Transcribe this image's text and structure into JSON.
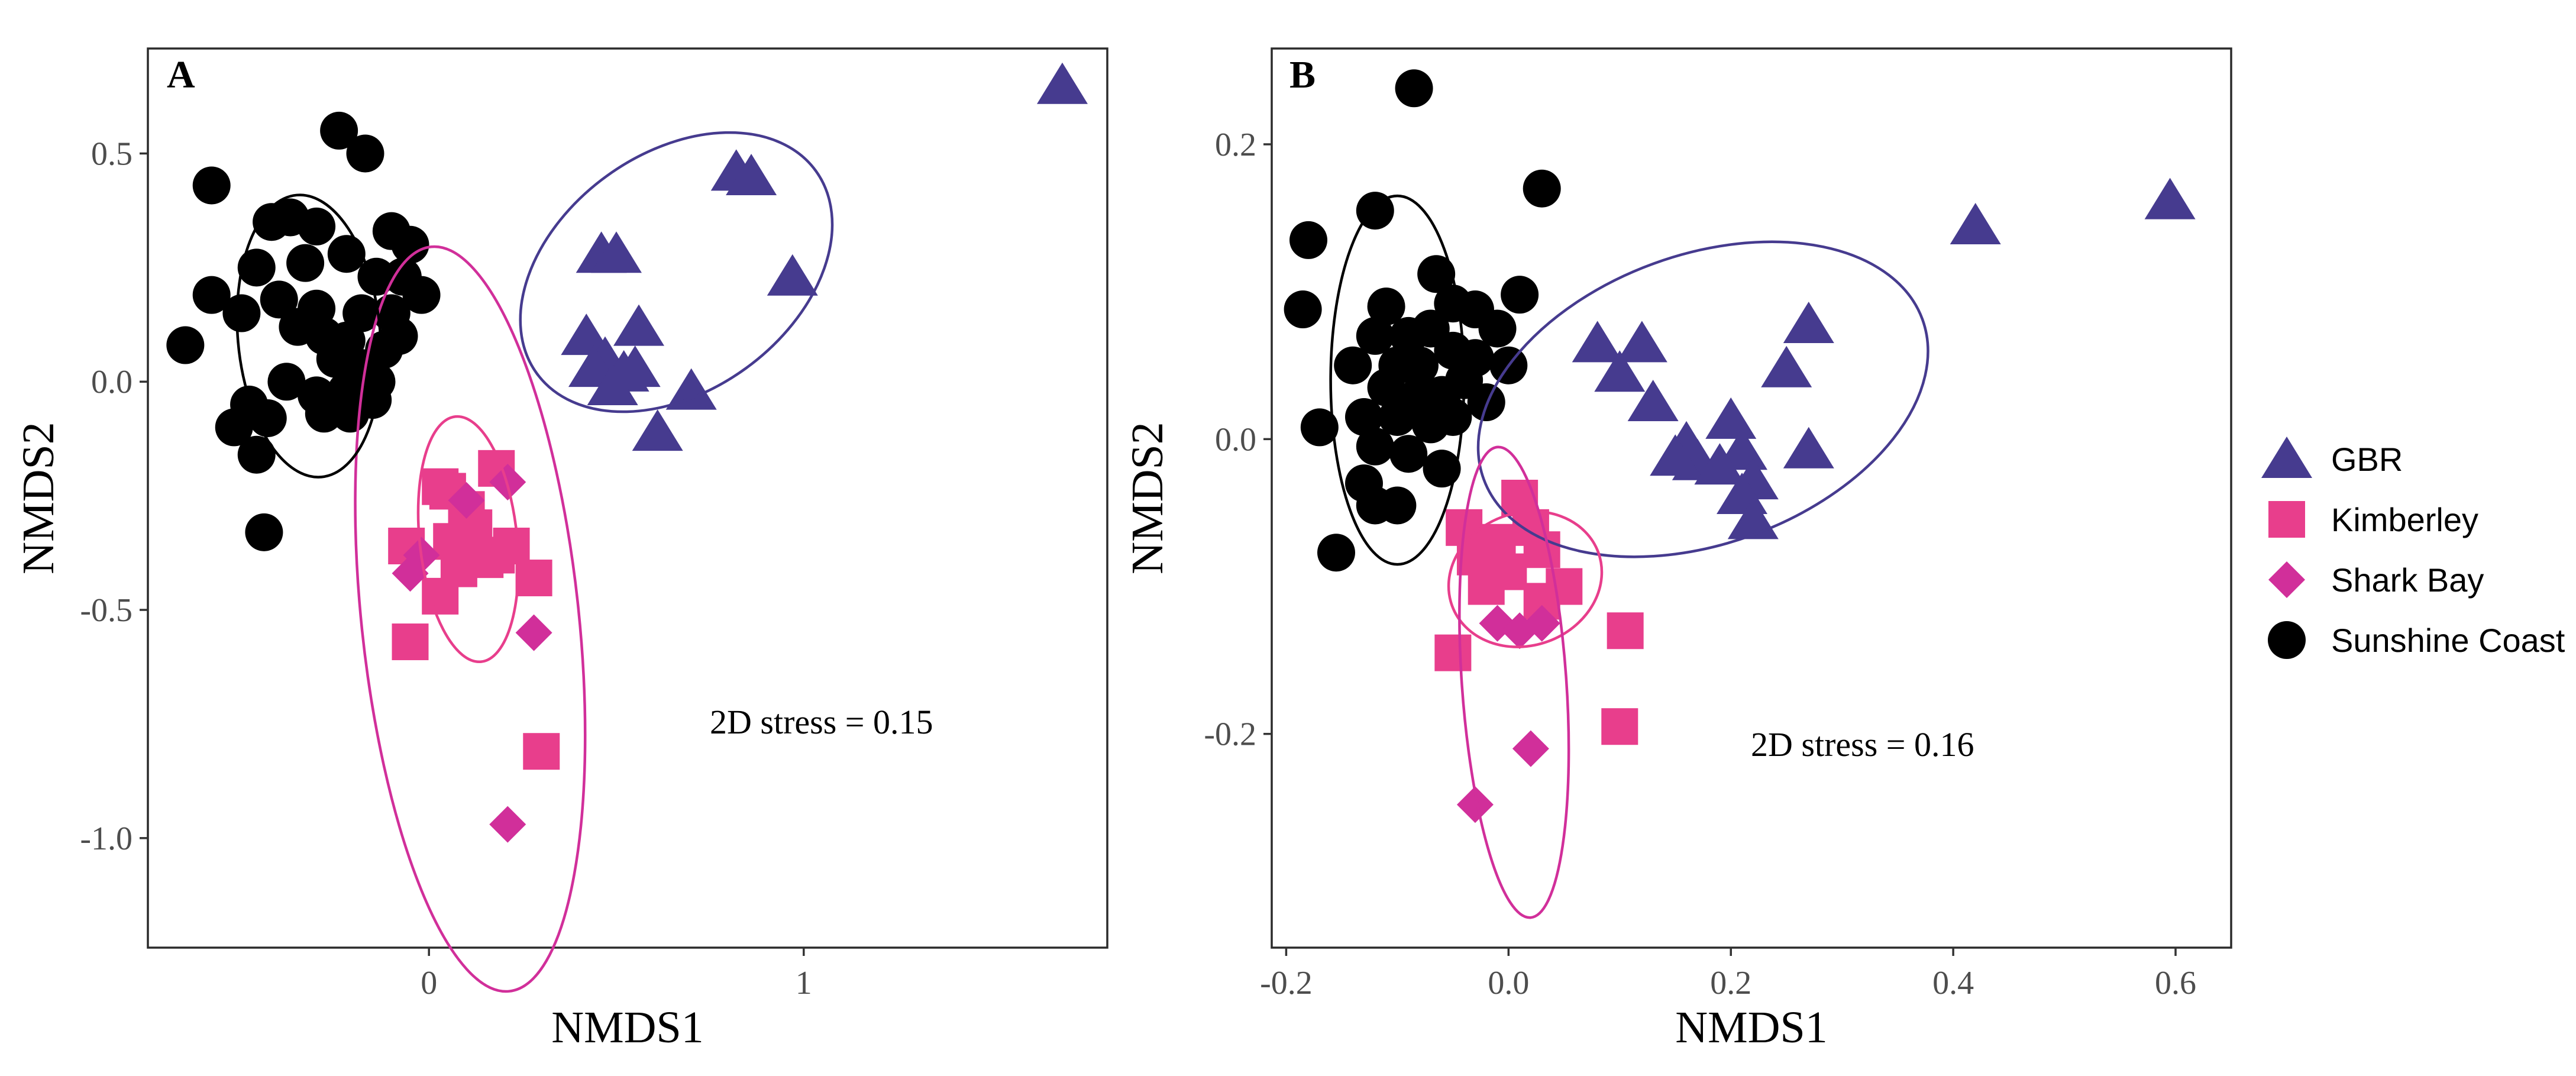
{
  "legend": {
    "items": [
      {
        "key": "gbr",
        "label": "GBR",
        "shape": "triangle",
        "color": "#463b8f"
      },
      {
        "key": "kim",
        "label": "Kimberley",
        "shape": "square",
        "color": "#e83e8c"
      },
      {
        "key": "shark",
        "label": "Shark Bay",
        "shape": "diamond",
        "color": "#d12f9a"
      },
      {
        "key": "sun",
        "label": "Sunshine Coast",
        "shape": "circle",
        "color": "#000000"
      }
    ]
  },
  "chart_data": [
    {
      "type": "scatter",
      "panel": "A",
      "xlabel": "NMDS1",
      "ylabel": "NMDS2",
      "xlim": [
        -0.75,
        1.81
      ],
      "ylim": [
        -1.24,
        0.73
      ],
      "xticks": [
        0,
        1
      ],
      "xtick_labels": [
        "0",
        "1"
      ],
      "yticks": [
        0.5,
        0.0,
        -0.5,
        -1.0
      ],
      "ytick_labels": [
        "0.5",
        "0.0",
        "-0.5",
        "-1.0"
      ],
      "annotation": "2D stress = 0.15",
      "series": [
        {
          "name": "GBR",
          "key": "gbr",
          "points": [
            [
              1.69,
              0.65
            ],
            [
              0.82,
              0.46
            ],
            [
              0.86,
              0.45
            ],
            [
              0.97,
              0.23
            ],
            [
              0.46,
              0.28
            ],
            [
              0.5,
              0.28
            ],
            [
              0.56,
              0.12
            ],
            [
              0.42,
              0.1
            ],
            [
              0.47,
              0.05
            ],
            [
              0.52,
              0.02
            ],
            [
              0.44,
              0.03
            ],
            [
              0.49,
              -0.01
            ],
            [
              0.55,
              0.03
            ],
            [
              0.7,
              -0.02
            ],
            [
              0.61,
              -0.11
            ]
          ]
        },
        {
          "name": "Kimberley",
          "key": "kim",
          "points": [
            [
              0.03,
              -0.23
            ],
            [
              0.05,
              -0.24
            ],
            [
              0.1,
              -0.28
            ],
            [
              0.18,
              -0.19
            ],
            [
              0.12,
              -0.32
            ],
            [
              0.22,
              -0.36
            ],
            [
              0.06,
              -0.35
            ],
            [
              0.15,
              -0.39
            ],
            [
              -0.06,
              -0.36
            ],
            [
              0.03,
              -0.47
            ],
            [
              0.08,
              -0.41
            ],
            [
              0.18,
              -0.38
            ],
            [
              0.28,
              -0.43
            ],
            [
              -0.05,
              -0.57
            ],
            [
              0.3,
              -0.81
            ]
          ]
        },
        {
          "name": "Shark Bay",
          "key": "shark",
          "points": [
            [
              0.21,
              -0.22
            ],
            [
              0.1,
              -0.26
            ],
            [
              -0.02,
              -0.38
            ],
            [
              -0.05,
              -0.42
            ],
            [
              0.28,
              -0.55
            ],
            [
              0.21,
              -0.97
            ]
          ]
        },
        {
          "name": "Sunshine Coast",
          "key": "sun",
          "points": [
            [
              -0.24,
              0.55
            ],
            [
              -0.17,
              0.5
            ],
            [
              -0.58,
              0.43
            ],
            [
              -0.42,
              0.35
            ],
            [
              -0.37,
              0.36
            ],
            [
              -0.3,
              0.34
            ],
            [
              -0.1,
              0.33
            ],
            [
              -0.05,
              0.3
            ],
            [
              -0.46,
              0.25
            ],
            [
              -0.33,
              0.26
            ],
            [
              -0.22,
              0.28
            ],
            [
              -0.14,
              0.23
            ],
            [
              -0.07,
              0.23
            ],
            [
              -0.58,
              0.19
            ],
            [
              -0.5,
              0.15
            ],
            [
              -0.02,
              0.19
            ],
            [
              -0.4,
              0.18
            ],
            [
              -0.3,
              0.16
            ],
            [
              -0.18,
              0.15
            ],
            [
              -0.1,
              0.15
            ],
            [
              -0.65,
              0.08
            ],
            [
              -0.35,
              0.12
            ],
            [
              -0.28,
              0.1
            ],
            [
              -0.22,
              0.09
            ],
            [
              -0.12,
              0.07
            ],
            [
              -0.08,
              0.1
            ],
            [
              -0.25,
              0.05
            ],
            [
              -0.18,
              0.03
            ],
            [
              -0.14,
              0.0
            ],
            [
              -0.38,
              0.0
            ],
            [
              -0.3,
              -0.03
            ],
            [
              -0.22,
              -0.02
            ],
            [
              -0.15,
              -0.04
            ],
            [
              -0.48,
              -0.05
            ],
            [
              -0.43,
              -0.08
            ],
            [
              -0.28,
              -0.07
            ],
            [
              -0.21,
              -0.07
            ],
            [
              -0.52,
              -0.1
            ],
            [
              -0.46,
              -0.16
            ],
            [
              -0.44,
              -0.33
            ]
          ]
        }
      ],
      "ellipses": [
        {
          "key": "gbr",
          "center": [
            0.66,
            0.24
          ],
          "rx": 0.46,
          "ry": 0.26,
          "angle_deg": -36
        },
        {
          "key": "kim",
          "center": [
            0.105,
            -0.345
          ],
          "rx": 0.13,
          "ry": 0.27,
          "angle_deg": -6
        },
        {
          "key": "shark",
          "center": [
            0.11,
            -0.52
          ],
          "rx": 0.29,
          "ry": 0.82,
          "angle_deg": -6
        },
        {
          "key": "sun",
          "center": [
            -0.32,
            0.1
          ],
          "rx": 0.19,
          "ry": 0.31,
          "angle_deg": -5
        }
      ]
    },
    {
      "type": "scatter",
      "panel": "B",
      "xlabel": "NMDS1",
      "ylabel": "NMDS2",
      "xlim": [
        -0.213,
        0.65
      ],
      "ylim": [
        -0.345,
        0.265
      ],
      "xticks": [
        -0.2,
        0.0,
        0.2,
        0.4,
        0.6
      ],
      "xtick_labels": [
        "-0.2",
        "0.0",
        "0.2",
        "0.4",
        "0.6"
      ],
      "yticks": [
        0.2,
        0.0,
        -0.2
      ],
      "ytick_labels": [
        "0.2",
        "0.0",
        "-0.2"
      ],
      "annotation": "2D stress = 0.16",
      "series": [
        {
          "name": "GBR",
          "key": "gbr",
          "points": [
            [
              0.595,
              0.162
            ],
            [
              0.42,
              0.145
            ],
            [
              0.27,
              0.078
            ],
            [
              0.08,
              0.065
            ],
            [
              0.12,
              0.065
            ],
            [
              0.1,
              0.045
            ],
            [
              0.25,
              0.048
            ],
            [
              0.13,
              0.025
            ],
            [
              0.2,
              0.013
            ],
            [
              0.16,
              -0.003
            ],
            [
              0.21,
              -0.008
            ],
            [
              0.27,
              -0.007
            ],
            [
              0.17,
              -0.015
            ],
            [
              0.15,
              -0.012
            ],
            [
              0.19,
              -0.018
            ],
            [
              0.22,
              -0.028
            ],
            [
              0.21,
              -0.038
            ],
            [
              0.22,
              -0.055
            ]
          ]
        },
        {
          "name": "Kimberley",
          "key": "kim",
          "points": [
            [
              0.01,
              -0.04
            ],
            [
              -0.04,
              -0.06
            ],
            [
              -0.01,
              -0.07
            ],
            [
              0.02,
              -0.06
            ],
            [
              -0.03,
              -0.08
            ],
            [
              0.0,
              -0.09
            ],
            [
              0.03,
              -0.075
            ],
            [
              0.05,
              -0.1
            ],
            [
              -0.02,
              -0.1
            ],
            [
              0.03,
              -0.11
            ],
            [
              0.105,
              -0.13
            ],
            [
              -0.05,
              -0.145
            ],
            [
              0.1,
              -0.195
            ]
          ]
        },
        {
          "name": "Shark Bay",
          "key": "shark",
          "points": [
            [
              -0.01,
              -0.125
            ],
            [
              0.01,
              -0.13
            ],
            [
              0.03,
              -0.125
            ],
            [
              0.02,
              -0.21
            ],
            [
              -0.03,
              -0.248
            ]
          ]
        },
        {
          "name": "Sunshine Coast",
          "key": "sun",
          "points": [
            [
              -0.085,
              0.238
            ],
            [
              -0.12,
              0.155
            ],
            [
              -0.18,
              0.135
            ],
            [
              0.03,
              0.17
            ],
            [
              0.01,
              0.098
            ],
            [
              -0.065,
              0.112
            ],
            [
              -0.05,
              0.092
            ],
            [
              -0.11,
              0.09
            ],
            [
              -0.03,
              0.088
            ],
            [
              -0.185,
              0.088
            ],
            [
              -0.12,
              0.07
            ],
            [
              -0.09,
              0.07
            ],
            [
              -0.07,
              0.075
            ],
            [
              -0.01,
              0.075
            ],
            [
              -0.05,
              0.06
            ],
            [
              -0.03,
              0.055
            ],
            [
              -0.1,
              0.05
            ],
            [
              -0.08,
              0.05
            ],
            [
              -0.14,
              0.05
            ],
            [
              0.0,
              0.05
            ],
            [
              -0.11,
              0.035
            ],
            [
              -0.08,
              0.03
            ],
            [
              -0.06,
              0.03
            ],
            [
              -0.04,
              0.04
            ],
            [
              -0.02,
              0.025
            ],
            [
              -0.13,
              0.015
            ],
            [
              -0.1,
              0.015
            ],
            [
              -0.07,
              0.01
            ],
            [
              -0.05,
              0.015
            ],
            [
              -0.17,
              0.008
            ],
            [
              -0.12,
              -0.005
            ],
            [
              -0.09,
              -0.01
            ],
            [
              -0.06,
              -0.02
            ],
            [
              -0.13,
              -0.03
            ],
            [
              -0.1,
              -0.045
            ],
            [
              -0.12,
              -0.045
            ],
            [
              -0.155,
              -0.077
            ]
          ]
        }
      ],
      "ellipses": [
        {
          "key": "gbr",
          "center": [
            0.175,
            0.027
          ],
          "rx": 0.21,
          "ry": 0.098,
          "angle_deg": -20
        },
        {
          "key": "kim",
          "center": [
            0.015,
            -0.095
          ],
          "rx": 0.07,
          "ry": 0.045,
          "angle_deg": -20
        },
        {
          "key": "shark",
          "center": [
            0.005,
            -0.165
          ],
          "rx": 0.047,
          "ry": 0.16,
          "angle_deg": -4
        },
        {
          "key": "sun",
          "center": [
            -0.1,
            0.04
          ],
          "rx": 0.06,
          "ry": 0.125,
          "angle_deg": 0
        }
      ]
    }
  ]
}
